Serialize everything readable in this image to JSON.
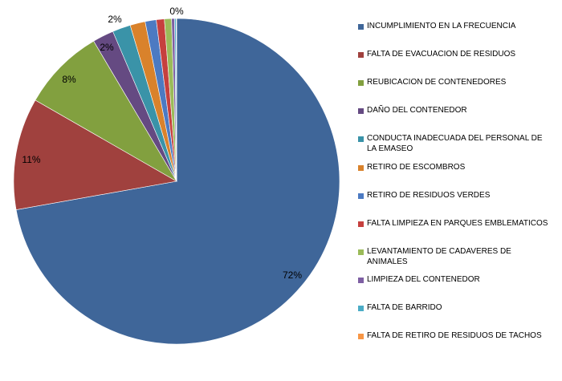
{
  "chart_data": {
    "type": "pie",
    "categories": [
      "INCUMPLIMIENTO EN LA FRECUENCIA",
      "FALTA DE EVACUACION DE RESIDUOS",
      "REUBICACION DE CONTENEDORES",
      "DAÑO DEL CONTENEDOR",
      "CONDUCTA INADECUADA DEL PERSONAL DE LA EMASEO",
      "RETIRO DE ESCOMBROS",
      "RETIRO DE RESIDUOS VERDES",
      "FALTA LIMPIEZA EN PARQUES EMBLEMATICOS",
      "LEVANTAMIENTO DE CADAVERES DE ANIMALES",
      "LIMPIEZA DEL CONTENEDOR",
      "FALTA DE BARRIDO",
      "FALTA DE RETIRO DE RESIDUOS DE TACHOS"
    ],
    "values": [
      72.2,
      11.1,
      8.2,
      2.1,
      1.8,
      1.5,
      1.1,
      0.8,
      0.7,
      0.3,
      0.15,
      0.05
    ],
    "data_labels": [
      "72%",
      "11%",
      "8%",
      "2%",
      "2%",
      "",
      "",
      "",
      "",
      "",
      "",
      "0%"
    ],
    "colors": [
      "#3F6699",
      "#A0413E",
      "#82A03F",
      "#654A82",
      "#3A93A8",
      "#D9822B",
      "#4C7AC2",
      "#C6403E",
      "#9BBB59",
      "#7E5FA3",
      "#4BACC6",
      "#F79646"
    ],
    "legend_position": "right",
    "start": "top, clockwise"
  }
}
